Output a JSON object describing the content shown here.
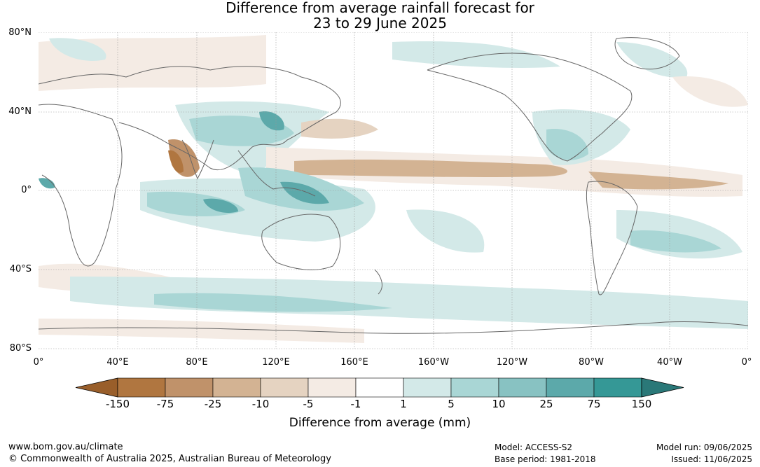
{
  "title": {
    "line1": "Difference from average rainfall forecast for",
    "line2": "23 to 29 June 2025"
  },
  "map": {
    "lat_labels": [
      "80°N",
      "40°N",
      "0°",
      "40°S",
      "80°S"
    ],
    "lon_labels": [
      "0°",
      "40°E",
      "80°E",
      "120°E",
      "160°E",
      "160°W",
      "120°W",
      "80°W",
      "40°W",
      "0°"
    ],
    "colors": {
      "coastline": "#666666",
      "grid": "#999999"
    }
  },
  "colorbar": {
    "label": "Difference from average (mm)",
    "ticks": [
      "-150",
      "-75",
      "-25",
      "-10",
      "-5",
      "-1",
      "1",
      "5",
      "10",
      "25",
      "75",
      "150"
    ],
    "colors": [
      "#995e2a",
      "#b07640",
      "#c0926a",
      "#d3b393",
      "#e5d3c1",
      "#f4ebe4",
      "#ffffff",
      "#d3e9e8",
      "#a9d6d5",
      "#88c2c2",
      "#5ca9aa",
      "#359896",
      "#2a7878"
    ]
  },
  "footer": {
    "url": "www.bom.gov.au/climate",
    "copyright": "© Commonwealth of Australia 2025, Australian Bureau of Meteorology",
    "model": "Model: ACCESS-S2",
    "base_period": "Base period: 1981-2018",
    "model_run": "Model run: 09/06/2025",
    "issued": "Issued: 11/06/2025"
  }
}
